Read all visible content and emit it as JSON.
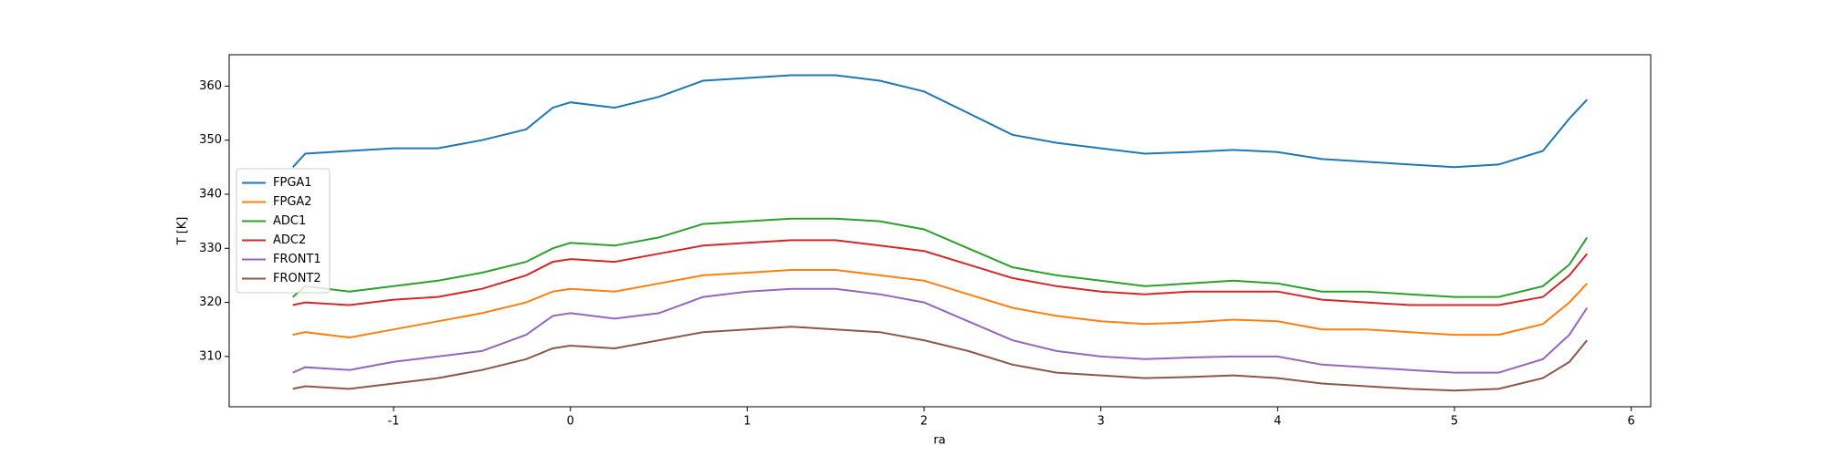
{
  "chart_data": {
    "type": "line",
    "xlabel": "ra",
    "ylabel": "T [K]",
    "x": [
      -1.57,
      -1.5,
      -1.25,
      -1,
      -0.75,
      -0.5,
      -0.25,
      -0.1,
      0,
      0.25,
      0.5,
      0.75,
      1,
      1.25,
      1.5,
      1.75,
      2,
      2.25,
      2.5,
      2.75,
      3,
      3.25,
      3.5,
      3.75,
      4,
      4.25,
      4.5,
      4.75,
      5,
      5.25,
      5.5,
      5.65,
      5.75
    ],
    "series": [
      {
        "name": "FPGA1",
        "color": "#1f77b4",
        "values": [
          345,
          347.5,
          348,
          348.5,
          348.5,
          350,
          352,
          356,
          357,
          356,
          358,
          361,
          361.5,
          362,
          362,
          361,
          359,
          355,
          351,
          349.5,
          348.5,
          347.5,
          347.8,
          348.2,
          347.8,
          346.5,
          346,
          345.5,
          345,
          345.5,
          348,
          354,
          357.5
        ]
      },
      {
        "name": "FPGA2",
        "color": "#ff7f0e",
        "values": [
          314,
          314.5,
          313.5,
          315,
          316.5,
          318,
          320,
          322,
          322.5,
          322,
          323.5,
          325,
          325.5,
          326,
          326,
          325,
          324,
          321.5,
          319,
          317.5,
          316.5,
          316,
          316.3,
          316.8,
          316.5,
          315,
          315,
          314.5,
          314,
          314,
          316,
          320,
          323.5
        ]
      },
      {
        "name": "ADC1",
        "color": "#2ca02c",
        "values": [
          321,
          323,
          322,
          323,
          324,
          325.5,
          327.5,
          330,
          331,
          330.5,
          332,
          334.5,
          335,
          335.5,
          335.5,
          335,
          333.5,
          330,
          326.5,
          325,
          324,
          323,
          323.5,
          324,
          323.5,
          322,
          322,
          321.5,
          321,
          321,
          323,
          327,
          332
        ]
      },
      {
        "name": "ADC2",
        "color": "#d62728",
        "values": [
          319.5,
          320,
          319.5,
          320.5,
          321,
          322.5,
          325,
          327.5,
          328,
          327.5,
          329,
          330.5,
          331,
          331.5,
          331.5,
          330.5,
          329.5,
          327,
          324.5,
          323,
          322,
          321.5,
          322,
          322,
          322,
          320.5,
          320,
          319.5,
          319.5,
          319.5,
          321,
          325,
          329
        ]
      },
      {
        "name": "FRONT1",
        "color": "#9467bd",
        "values": [
          307,
          308,
          307.5,
          309,
          310,
          311,
          314,
          317.5,
          318,
          317,
          318,
          321,
          322,
          322.5,
          322.5,
          321.5,
          320,
          316.5,
          313,
          311,
          310,
          309.5,
          309.8,
          310,
          310,
          308.5,
          308,
          307.5,
          307,
          307,
          309.5,
          314,
          319
        ]
      },
      {
        "name": "FRONT2",
        "color": "#8c564b",
        "values": [
          304,
          304.5,
          304,
          305,
          306,
          307.5,
          309.5,
          311.5,
          312,
          311.5,
          313,
          314.5,
          315,
          315.5,
          315,
          314.5,
          313,
          311,
          308.5,
          307,
          306.5,
          306,
          306.2,
          306.5,
          306,
          305,
          304.5,
          304,
          303.7,
          304,
          306,
          309,
          313
        ]
      }
    ],
    "xlim": [
      -1.93,
      6.11
    ],
    "ylim": [
      300.7,
      365.8
    ],
    "xticks": [
      -1,
      0,
      1,
      2,
      3,
      4,
      5,
      6
    ],
    "yticks": [
      310,
      320,
      330,
      340,
      350,
      360
    ],
    "legend": "center left"
  }
}
